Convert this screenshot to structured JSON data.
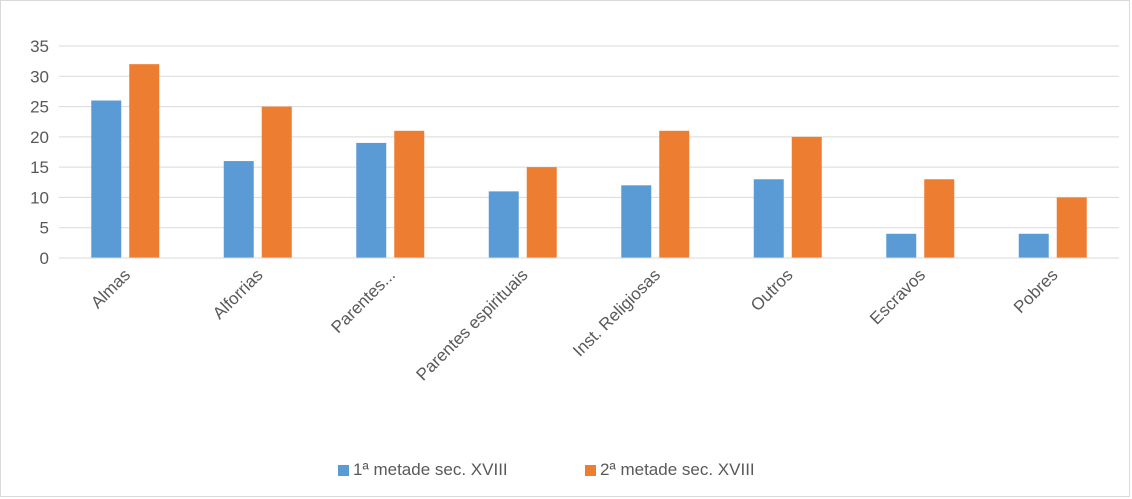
{
  "chart_data": {
    "type": "bar",
    "title": "",
    "xlabel": "",
    "ylabel": "",
    "ylim": [
      0,
      35
    ],
    "yticks": [
      0,
      5,
      10,
      15,
      20,
      25,
      30,
      35
    ],
    "grid": true,
    "legend_position": "bottom",
    "categories": [
      "Almas",
      "Alforrias",
      "Parentes...",
      "Parentes espirituais",
      "Inst. Religiosas",
      "Outros",
      "Escravos",
      "Pobres"
    ],
    "series": [
      {
        "name": "1ª metade sec. XVIII",
        "color": "#5b9bd5",
        "values": [
          26,
          16,
          19,
          11,
          12,
          13,
          4,
          4
        ]
      },
      {
        "name": "2ª metade sec. XVIII",
        "color": "#ed7d31",
        "values": [
          32,
          25,
          21,
          15,
          21,
          20,
          13,
          10
        ]
      }
    ]
  }
}
